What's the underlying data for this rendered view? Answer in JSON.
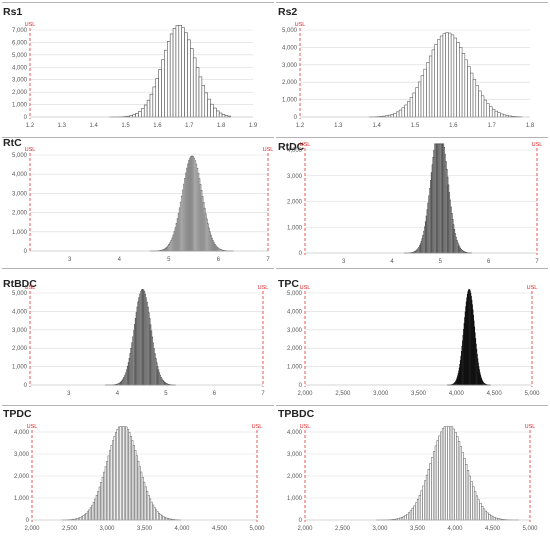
{
  "chart_data": [
    {
      "type": "bar",
      "title": "Rs1",
      "usl_label": "USL",
      "usl_values": [
        1.2
      ],
      "xlim": [
        1.2,
        1.9
      ],
      "xticks": [
        1.2,
        1.3,
        1.4,
        1.5,
        1.6,
        1.7,
        1.8,
        1.9
      ],
      "ylim": [
        0,
        7000
      ],
      "yticks": [
        0,
        1000,
        2000,
        3000,
        4000,
        5000,
        6000,
        7000
      ],
      "grid": true,
      "distribution": {
        "mean": 1.668,
        "sd": 0.052,
        "peak": 7400,
        "min": 1.45,
        "max": 1.83,
        "bins": 42
      },
      "color": "#444444"
    },
    {
      "type": "bar",
      "title": "Rs2",
      "usl_label": "USL",
      "usl_values": [
        1.2
      ],
      "xlim": [
        1.2,
        1.8
      ],
      "xticks": [
        1.2,
        1.3,
        1.4,
        1.5,
        1.6,
        1.7,
        1.8
      ],
      "ylim": [
        0,
        5000
      ],
      "yticks": [
        0,
        1000,
        2000,
        3000,
        4000,
        5000
      ],
      "grid": true,
      "distribution": {
        "mean": 1.585,
        "sd": 0.055,
        "peak": 4850,
        "min": 1.38,
        "max": 1.78,
        "bins": 56
      },
      "color": "#555555"
    },
    {
      "type": "bar",
      "title": "RtC",
      "usl_label": "USL",
      "usl_values": [
        2.2,
        7
      ],
      "xlim": [
        2.2,
        7
      ],
      "xticks": [
        3,
        4,
        5,
        6,
        7
      ],
      "ylim": [
        0,
        5000
      ],
      "yticks": [
        0,
        1000,
        2000,
        3000,
        4000,
        5000
      ],
      "grid": true,
      "distribution": {
        "mean": 5.47,
        "sd": 0.2,
        "peak": 4950,
        "min": 4.62,
        "max": 6.3,
        "bins": 80
      },
      "color": "#555555"
    },
    {
      "type": "bar",
      "title": "RtDC",
      "usl_label": "USL",
      "usl_values": [
        2.2,
        7
      ],
      "xlim": [
        2.2,
        7
      ],
      "xticks": [
        3,
        4,
        5,
        6,
        7
      ],
      "ylim": [
        0,
        4000
      ],
      "yticks": [
        0,
        1000,
        2000,
        3000,
        4000
      ],
      "grid": true,
      "distribution": {
        "mean": 4.98,
        "sd": 0.17,
        "peak": 4900,
        "min": 4.25,
        "max": 5.65,
        "bins": 80
      },
      "color": "#3a3a3a"
    },
    {
      "type": "bar",
      "title": "RtBDC",
      "usl_label": "USL",
      "usl_values": [
        2.2,
        7
      ],
      "xlim": [
        2.2,
        7
      ],
      "xticks": [
        3,
        4,
        5,
        6,
        7
      ],
      "ylim": [
        0,
        5000
      ],
      "yticks": [
        0,
        1000,
        2000,
        3000,
        4000,
        5000
      ],
      "grid": true,
      "distribution": {
        "mean": 4.52,
        "sd": 0.17,
        "peak": 5200,
        "min": 3.75,
        "max": 5.2,
        "bins": 80
      },
      "color": "#3a3a3a"
    },
    {
      "type": "bar",
      "title": "TPC",
      "usl_label": "USL",
      "usl_values": [
        2000,
        5000
      ],
      "xlim": [
        2000,
        5000
      ],
      "xticks": [
        2000,
        2500,
        3000,
        3500,
        4000,
        4500,
        5000
      ],
      "xtick_labels": [
        "2,000",
        "2,500",
        "3,000",
        "3,500",
        "4,000",
        "4,500",
        "5,000"
      ],
      "ylim": [
        0,
        5000
      ],
      "yticks": [
        0,
        1000,
        2000,
        3000,
        4000,
        5000
      ],
      "grid": true,
      "distribution": {
        "mean": 4170,
        "sd": 70,
        "peak": 5200,
        "min": 3880,
        "max": 4450,
        "bins": 80
      },
      "color": "#111111"
    },
    {
      "type": "bar",
      "title": "TPDC",
      "usl_label": "USL",
      "usl_values": [
        2000,
        5000
      ],
      "xlim": [
        2000,
        5000
      ],
      "xticks": [
        2000,
        2500,
        3000,
        3500,
        4000,
        4500,
        5000
      ],
      "xtick_labels": [
        "2,000",
        "2,500",
        "3,000",
        "3,500",
        "4,000",
        "4,500",
        "5,000"
      ],
      "ylim": [
        0,
        4000
      ],
      "yticks": [
        0,
        1000,
        2000,
        3000,
        4000
      ],
      "grid": true,
      "distribution": {
        "mean": 3210,
        "sd": 210,
        "peak": 4350,
        "min": 2400,
        "max": 3980,
        "bins": 80
      },
      "color": "#666666"
    },
    {
      "type": "bar",
      "title": "TPBDC",
      "usl_label": "USL",
      "usl_values": [
        2000,
        5000
      ],
      "xlim": [
        2000,
        5000
      ],
      "xticks": [
        2000,
        2500,
        3000,
        3500,
        4000,
        4500,
        5000
      ],
      "xtick_labels": [
        "2,000",
        "2,500",
        "3,000",
        "3,500",
        "4,000",
        "4,500",
        "5,000"
      ],
      "ylim": [
        0,
        4000
      ],
      "yticks": [
        0,
        1000,
        2000,
        3000,
        4000
      ],
      "grid": true,
      "distribution": {
        "mean": 3910,
        "sd": 230,
        "peak": 4350,
        "min": 2950,
        "max": 4850,
        "bins": 80
      },
      "color": "#666666"
    }
  ]
}
